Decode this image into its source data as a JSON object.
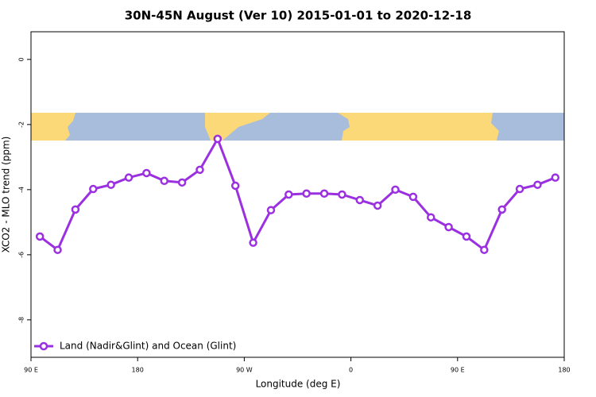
{
  "chart_data": {
    "type": "line",
    "title": "30N-45N August (Ver 10)   2015-01-01 to 2020-12-18",
    "x_label": "Longitude (deg E)",
    "y_label": "XCO2 - MLO trend (ppm)",
    "x": [
      97.5,
      112.5,
      127.5,
      142.5,
      157.5,
      172.5,
      187.5,
      202.5,
      217.5,
      232.5,
      247.5,
      262.5,
      277.5,
      292.5,
      307.5,
      322.5,
      337.5,
      352.5,
      367.5,
      382.5,
      397.5,
      412.5,
      427.5,
      442.5,
      457.5,
      472.5,
      487.5,
      502.5,
      517.5,
      532.5
    ],
    "series": [
      {
        "name": "Land (Nadir&Glint) and Ocean (Glint)",
        "color": "#9b30e0",
        "values": [
          -5.44,
          -5.85,
          -4.61,
          -3.98,
          -3.85,
          -3.63,
          -3.49,
          -3.73,
          -3.78,
          -3.39,
          -2.44,
          -3.88,
          -5.63,
          -4.63,
          -4.15,
          -4.12,
          -4.12,
          -4.15,
          -4.32,
          -4.49,
          -4.0,
          -4.22,
          -4.85,
          -5.15,
          -5.44,
          -5.85,
          -4.61,
          -3.98,
          -3.85,
          -3.63
        ]
      }
    ],
    "xlim": [
      90,
      540
    ],
    "xticks": [
      {
        "value": 90,
        "label": "90 E"
      },
      {
        "value": 180,
        "label": "180"
      },
      {
        "value": 270,
        "label": "90 W"
      },
      {
        "value": 360,
        "label": "0"
      },
      {
        "value": 450,
        "label": "90 E"
      },
      {
        "value": 540,
        "label": "180"
      }
    ],
    "ylim": [
      -9.15,
      0.85
    ],
    "yticks": [
      0,
      -2,
      -4,
      -6,
      -8
    ],
    "legend": "bottom-left"
  }
}
